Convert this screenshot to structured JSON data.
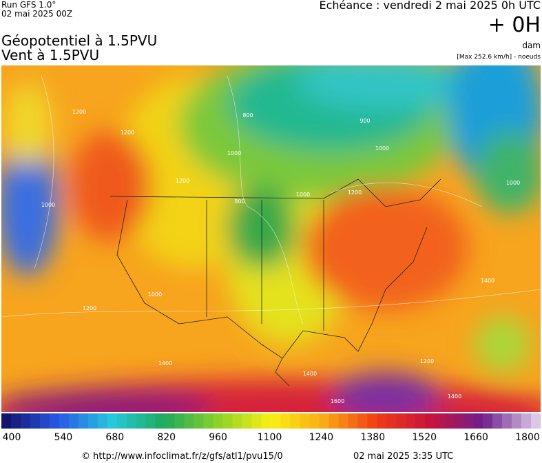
{
  "header": {
    "run": "Run GFS 1.0°",
    "run_date": "02 mai 2025 00Z",
    "title_line1": "Géopotentiel à 1.5PVU",
    "title_line2": "Vent à 1.5PVU",
    "valid_time": "Echéance : vendredi 2 mai 2025 0h UTC",
    "lead": "+ 0H",
    "unit": "dam",
    "max_note": "[Max 252.6 km/h] - noeuds"
  },
  "map": {
    "contour_labels": [
      "1200",
      "1200",
      "1000",
      "800",
      "900",
      "1000",
      "800",
      "1000",
      "1200",
      "1000",
      "1000",
      "1200",
      "1400",
      "1200",
      "1400",
      "1400",
      "1600",
      "1400",
      "1200",
      "1000"
    ]
  },
  "colorbar": {
    "ticks": [
      "400",
      "540",
      "680",
      "820",
      "960",
      "1100",
      "1240",
      "1380",
      "1520",
      "1660",
      "1800"
    ]
  },
  "footer": {
    "source": "© http://www.infoclimat.fr/z/gfs/atl1/pvu15/0",
    "generated": "02 mai 2025  3:35 UTC"
  }
}
